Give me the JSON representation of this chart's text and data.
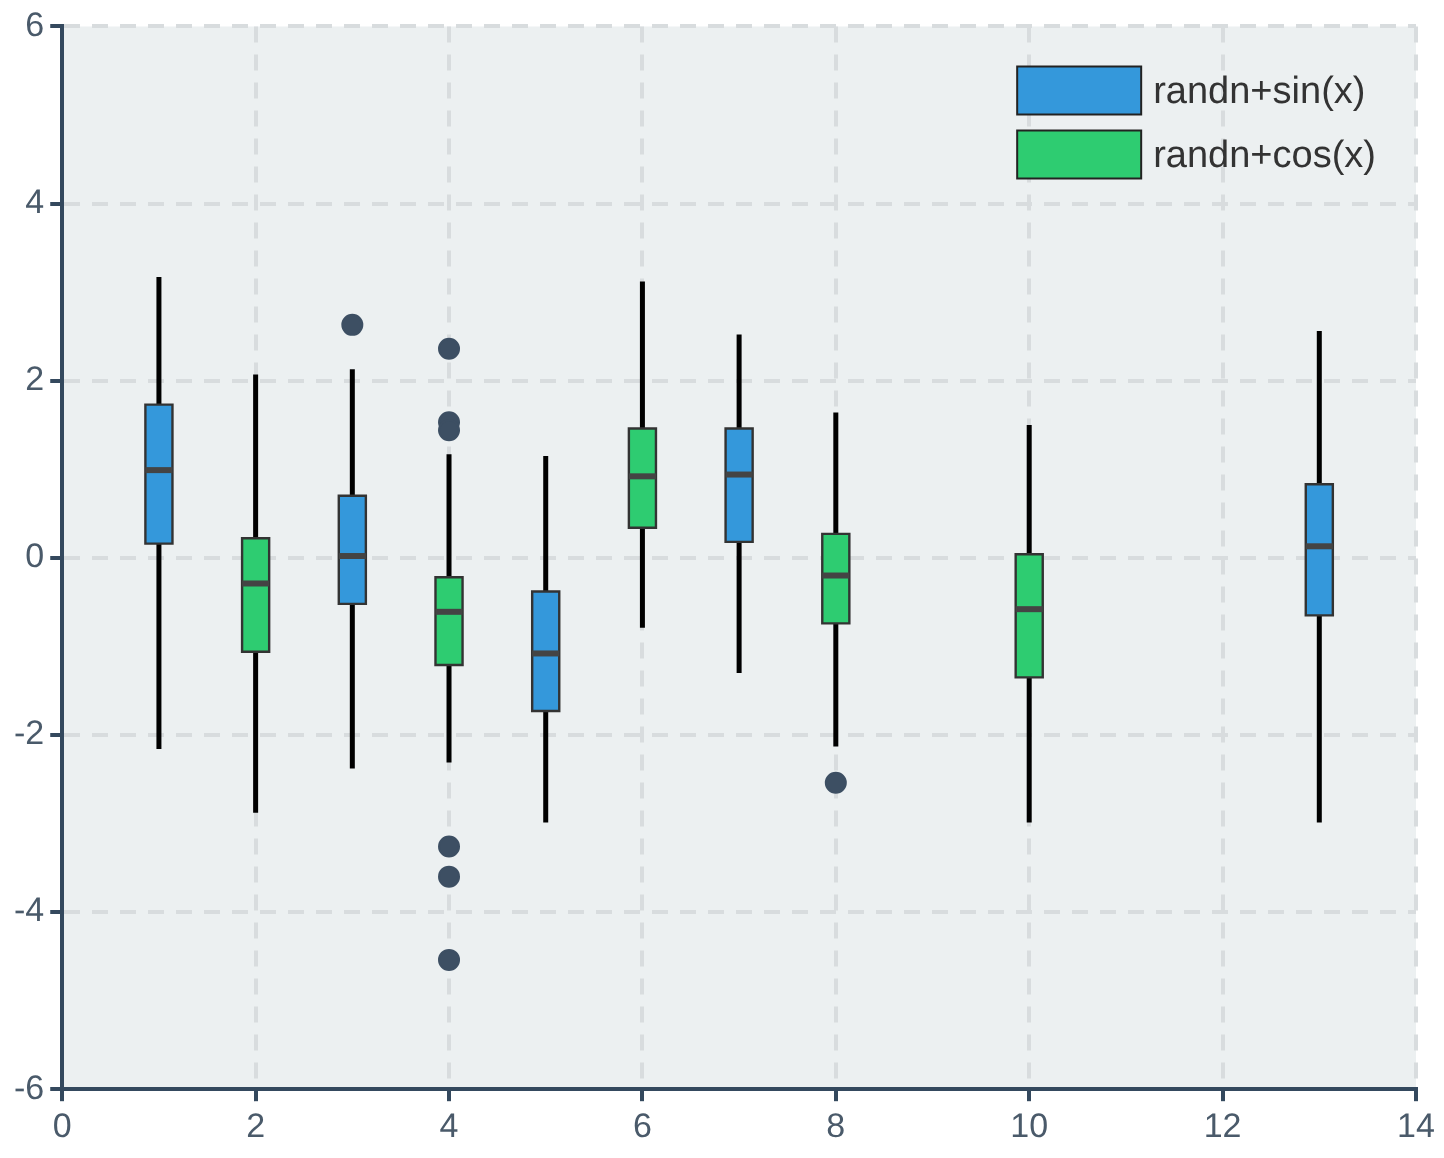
{
  "chart_data": {
    "type": "box",
    "xlim": [
      0,
      14
    ],
    "xticks": [
      0,
      2,
      4,
      6,
      8,
      10,
      12,
      14
    ],
    "ylim": [
      -6,
      6
    ],
    "yticks": [
      -6,
      -4,
      -2,
      0,
      2,
      4,
      6
    ],
    "grid": true,
    "legend": "top right",
    "series": [
      {
        "name": "randn+sin(x)",
        "color": "#3498db",
        "x": [
          1,
          3,
          5,
          7,
          13
        ],
        "boxes": [
          {
            "low": -2.16,
            "q1": 0.16,
            "median": 0.99,
            "q3": 1.73,
            "high": 3.17
          },
          {
            "low": -2.38,
            "q1": -0.52,
            "median": 0.02,
            "q3": 0.7,
            "high": 2.13,
            "outliers": [
              2.63
            ]
          },
          {
            "low": -2.99,
            "q1": -1.73,
            "median": -1.08,
            "q3": -0.38,
            "high": 1.15
          },
          {
            "low": -1.3,
            "q1": 0.18,
            "median": 0.94,
            "q3": 1.46,
            "high": 2.52
          },
          {
            "low": -2.99,
            "q1": -0.65,
            "median": 0.13,
            "q3": 0.83,
            "high": 2.56
          }
        ]
      },
      {
        "name": "randn+cos(x)",
        "color": "#2ecc71",
        "x": [
          2,
          4,
          6,
          8,
          10
        ],
        "boxes": [
          {
            "low": -2.88,
            "q1": -1.06,
            "median": -0.29,
            "q3": 0.22,
            "high": 2.07
          },
          {
            "low": -2.31,
            "q1": -1.21,
            "median": -0.61,
            "q3": -0.22,
            "high": 1.17,
            "outliers": [
              2.36,
              1.53,
              1.44,
              -3.26,
              -3.6,
              -4.54
            ]
          },
          {
            "low": -0.79,
            "q1": 0.34,
            "median": 0.92,
            "q3": 1.46,
            "high": 3.12
          },
          {
            "low": -2.13,
            "q1": -0.74,
            "median": -0.2,
            "q3": 0.27,
            "high": 1.64,
            "outliers": [
              -2.54
            ]
          },
          {
            "low": -2.99,
            "q1": -1.35,
            "median": -0.58,
            "q3": 0.04,
            "high": 1.5
          }
        ]
      }
    ]
  }
}
